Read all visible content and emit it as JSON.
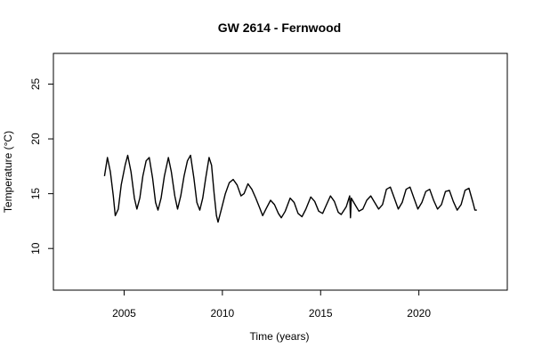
{
  "chart_data": {
    "type": "line",
    "title": "GW 2614 - Fernwood",
    "xlabel": "Time (years)",
    "ylabel": "Temperature (°C)",
    "xlim": [
      2001.4,
      2024.5
    ],
    "ylim": [
      6.2,
      27.8
    ],
    "x_ticks": [
      2005,
      2010,
      2015,
      2020
    ],
    "y_ticks": [
      10,
      15,
      20,
      25
    ],
    "grid": false,
    "series": [
      {
        "color": "#000000",
        "points": [
          [
            2004.0,
            16.6
          ],
          [
            2004.15,
            18.3
          ],
          [
            2004.3,
            17.0
          ],
          [
            2004.45,
            14.8
          ],
          [
            2004.55,
            13.0
          ],
          [
            2004.7,
            13.6
          ],
          [
            2004.85,
            15.8
          ],
          [
            2005.05,
            17.6
          ],
          [
            2005.18,
            18.5
          ],
          [
            2005.35,
            17.0
          ],
          [
            2005.52,
            14.6
          ],
          [
            2005.65,
            13.6
          ],
          [
            2005.8,
            14.6
          ],
          [
            2005.95,
            16.6
          ],
          [
            2006.12,
            18.0
          ],
          [
            2006.28,
            18.3
          ],
          [
            2006.45,
            16.4
          ],
          [
            2006.6,
            14.2
          ],
          [
            2006.72,
            13.5
          ],
          [
            2006.88,
            14.6
          ],
          [
            2007.05,
            16.6
          ],
          [
            2007.25,
            18.3
          ],
          [
            2007.4,
            17.0
          ],
          [
            2007.58,
            14.8
          ],
          [
            2007.72,
            13.6
          ],
          [
            2007.88,
            14.8
          ],
          [
            2008.05,
            16.6
          ],
          [
            2008.22,
            18.0
          ],
          [
            2008.38,
            18.5
          ],
          [
            2008.55,
            16.4
          ],
          [
            2008.7,
            14.2
          ],
          [
            2008.85,
            13.5
          ],
          [
            2009.0,
            14.6
          ],
          [
            2009.15,
            16.4
          ],
          [
            2009.32,
            18.3
          ],
          [
            2009.45,
            17.6
          ],
          [
            2009.58,
            15.0
          ],
          [
            2009.7,
            13.0
          ],
          [
            2009.78,
            12.4
          ],
          [
            2009.95,
            13.6
          ],
          [
            2010.15,
            15.0
          ],
          [
            2010.35,
            16.0
          ],
          [
            2010.55,
            16.3
          ],
          [
            2010.75,
            15.8
          ],
          [
            2010.95,
            14.8
          ],
          [
            2011.1,
            15.0
          ],
          [
            2011.3,
            15.9
          ],
          [
            2011.5,
            15.4
          ],
          [
            2011.7,
            14.6
          ],
          [
            2011.9,
            13.7
          ],
          [
            2012.05,
            13.0
          ],
          [
            2012.25,
            13.7
          ],
          [
            2012.45,
            14.4
          ],
          [
            2012.65,
            14.0
          ],
          [
            2012.85,
            13.2
          ],
          [
            2013.0,
            12.8
          ],
          [
            2013.2,
            13.4
          ],
          [
            2013.45,
            14.6
          ],
          [
            2013.65,
            14.2
          ],
          [
            2013.85,
            13.2
          ],
          [
            2014.05,
            12.9
          ],
          [
            2014.25,
            13.6
          ],
          [
            2014.5,
            14.7
          ],
          [
            2014.7,
            14.3
          ],
          [
            2014.9,
            13.4
          ],
          [
            2015.1,
            13.2
          ],
          [
            2015.3,
            14.0
          ],
          [
            2015.5,
            14.8
          ],
          [
            2015.7,
            14.3
          ],
          [
            2015.9,
            13.3
          ],
          [
            2016.05,
            13.1
          ],
          [
            2016.3,
            13.8
          ],
          [
            2016.48,
            14.8
          ],
          [
            2016.52,
            12.8
          ],
          [
            2016.56,
            14.6
          ],
          [
            2016.75,
            14.0
          ],
          [
            2016.95,
            13.4
          ],
          [
            2017.15,
            13.6
          ],
          [
            2017.35,
            14.4
          ],
          [
            2017.55,
            14.8
          ],
          [
            2017.75,
            14.2
          ],
          [
            2017.95,
            13.6
          ],
          [
            2018.15,
            14.0
          ],
          [
            2018.35,
            15.4
          ],
          [
            2018.55,
            15.6
          ],
          [
            2018.75,
            14.6
          ],
          [
            2018.95,
            13.6
          ],
          [
            2019.15,
            14.2
          ],
          [
            2019.35,
            15.4
          ],
          [
            2019.55,
            15.6
          ],
          [
            2019.75,
            14.6
          ],
          [
            2019.95,
            13.6
          ],
          [
            2020.15,
            14.2
          ],
          [
            2020.35,
            15.2
          ],
          [
            2020.55,
            15.4
          ],
          [
            2020.75,
            14.4
          ],
          [
            2020.95,
            13.6
          ],
          [
            2021.15,
            14.0
          ],
          [
            2021.35,
            15.2
          ],
          [
            2021.55,
            15.3
          ],
          [
            2021.75,
            14.3
          ],
          [
            2021.95,
            13.5
          ],
          [
            2022.15,
            14.0
          ],
          [
            2022.35,
            15.3
          ],
          [
            2022.55,
            15.5
          ],
          [
            2022.75,
            14.2
          ],
          [
            2022.85,
            13.5
          ],
          [
            2022.95,
            13.5
          ]
        ]
      }
    ]
  }
}
